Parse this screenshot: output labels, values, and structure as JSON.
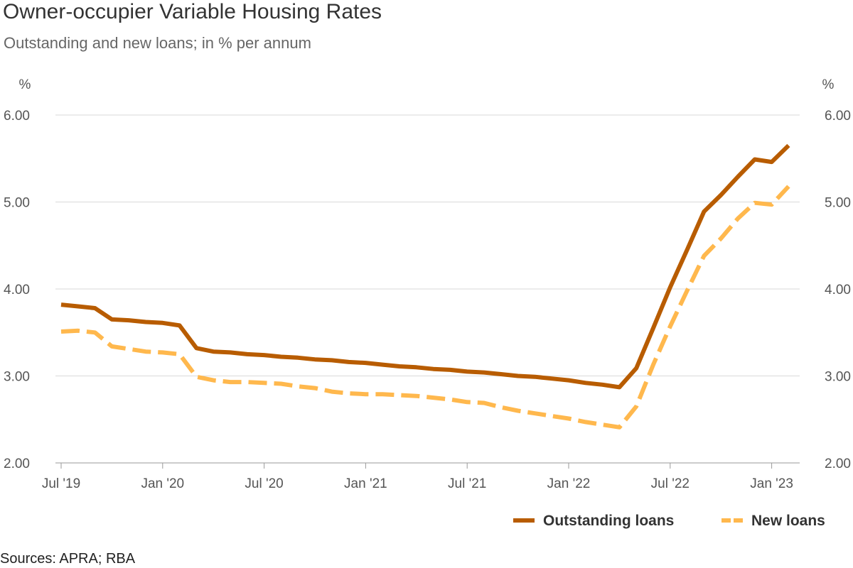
{
  "chart_data": {
    "type": "line",
    "title": "Owner-occupier Variable Housing Rates",
    "subtitle": "Outstanding and new loans; in % per annum",
    "source": "Sources: APRA; RBA",
    "y_unit_left": "%",
    "y_unit_right": "%",
    "ylim": [
      2.0,
      6.0
    ],
    "y_ticks": [
      "2.00",
      "3.00",
      "4.00",
      "5.00",
      "6.00"
    ],
    "x_ticks": [
      "Jul '19",
      "Jan '20",
      "Jul '20",
      "Jan '21",
      "Jul '21",
      "Jan '22",
      "Jul '22",
      "Jan '23"
    ],
    "x_range": [
      "2019-07",
      "2023-02"
    ],
    "grid": true,
    "legend_position": "bottom-right",
    "x": [
      "2019-07",
      "2019-08",
      "2019-09",
      "2019-10",
      "2019-11",
      "2019-12",
      "2020-01",
      "2020-02",
      "2020-03",
      "2020-04",
      "2020-05",
      "2020-06",
      "2020-07",
      "2020-08",
      "2020-09",
      "2020-10",
      "2020-11",
      "2020-12",
      "2021-01",
      "2021-02",
      "2021-03",
      "2021-04",
      "2021-05",
      "2021-06",
      "2021-07",
      "2021-08",
      "2021-09",
      "2021-10",
      "2021-11",
      "2021-12",
      "2022-01",
      "2022-02",
      "2022-03",
      "2022-04",
      "2022-05",
      "2022-06",
      "2022-07",
      "2022-08",
      "2022-09",
      "2022-10",
      "2022-11",
      "2022-12",
      "2023-01",
      "2023-02"
    ],
    "series": [
      {
        "name": "Outstanding loans",
        "color": "#b85c00",
        "style": "solid",
        "values": [
          3.82,
          3.8,
          3.78,
          3.65,
          3.64,
          3.62,
          3.61,
          3.58,
          3.32,
          3.28,
          3.27,
          3.25,
          3.24,
          3.22,
          3.21,
          3.19,
          3.18,
          3.16,
          3.15,
          3.13,
          3.11,
          3.1,
          3.08,
          3.07,
          3.05,
          3.04,
          3.02,
          3.0,
          2.99,
          2.97,
          2.95,
          2.92,
          2.9,
          2.87,
          3.09,
          3.55,
          4.02,
          4.45,
          4.89,
          5.08,
          5.29,
          5.49,
          5.46,
          5.65
        ]
      },
      {
        "name": "New loans",
        "color": "#ffb84d",
        "style": "dashed",
        "values": [
          3.51,
          3.52,
          3.5,
          3.34,
          3.31,
          3.28,
          3.27,
          3.25,
          2.99,
          2.95,
          2.93,
          2.93,
          2.92,
          2.91,
          2.88,
          2.86,
          2.82,
          2.8,
          2.79,
          2.79,
          2.78,
          2.77,
          2.75,
          2.73,
          2.7,
          2.69,
          2.64,
          2.6,
          2.57,
          2.54,
          2.51,
          2.47,
          2.44,
          2.41,
          2.65,
          3.13,
          3.57,
          3.98,
          4.38,
          4.58,
          4.81,
          4.99,
          4.97,
          5.18
        ]
      }
    ]
  }
}
